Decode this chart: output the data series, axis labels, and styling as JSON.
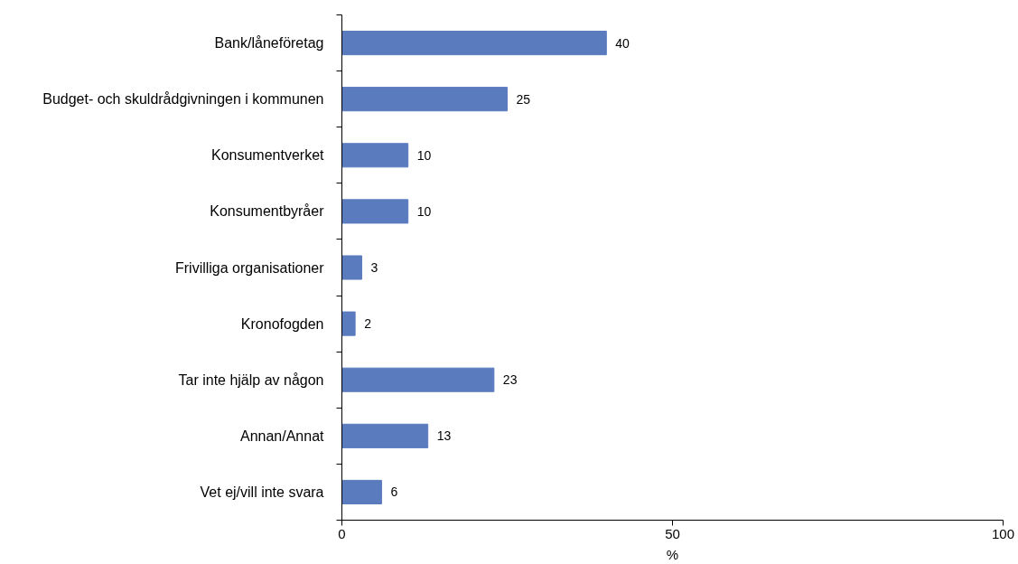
{
  "chart_data": {
    "type": "bar",
    "orientation": "horizontal",
    "categories": [
      "Bank/låneföretag",
      "Budget- och skuldrådgivningen i kommunen",
      "Konsumentverket",
      "Konsumentbyråer",
      "Frivilliga organisationer",
      "Kronofogden",
      "Tar inte hjälp av någon",
      "Annan/Annat",
      "Vet ej/vill inte svara"
    ],
    "values": [
      40,
      25,
      10,
      10,
      3,
      2,
      23,
      13,
      6
    ],
    "color": "#5b7bbf",
    "xlabel": "%",
    "xlim": [
      0,
      100
    ],
    "xticks": [
      0,
      50,
      100
    ],
    "data_labels": true
  }
}
